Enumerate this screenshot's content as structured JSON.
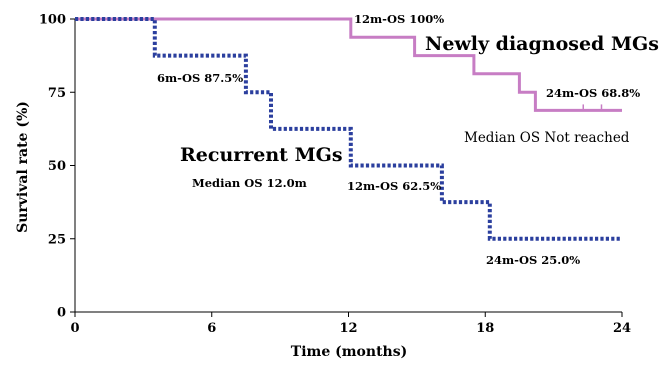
{
  "chart_data": {
    "type": "line",
    "xlabel": "Time (months)",
    "ylabel": "Survival rate (%)",
    "xlim": [
      0,
      24
    ],
    "ylim": [
      0,
      100
    ],
    "xticks": [
      0,
      6,
      12,
      18,
      24
    ],
    "yticks": [
      0,
      25,
      50,
      75,
      100
    ],
    "grid": false,
    "series": [
      {
        "name": "Newly diagnosed MGs",
        "color": "#c77dc4",
        "style": "solid",
        "x": [
          0,
          12.1,
          12.1,
          14.9,
          14.9,
          17.5,
          17.5,
          19.5,
          19.5,
          20.2,
          20.2,
          24
        ],
        "y": [
          100,
          100,
          93.8,
          93.8,
          87.5,
          87.5,
          81.3,
          81.3,
          75,
          75,
          68.8,
          68.8
        ],
        "censored": [
          [
            22.3,
            68.8
          ],
          [
            23.1,
            68.8
          ]
        ]
      },
      {
        "name": "Recurrent MGs",
        "color": "#2b3f9e",
        "style": "dotted",
        "x": [
          0,
          3.5,
          3.5,
          7.5,
          7.5,
          8.6,
          8.6,
          12.1,
          12.1,
          16.1,
          16.1,
          18.2,
          18.2,
          24
        ],
        "y": [
          100,
          100,
          87.5,
          87.5,
          75,
          75,
          62.5,
          62.5,
          50,
          50,
          37.5,
          37.5,
          25,
          25
        ],
        "censored": []
      }
    ],
    "annotations": {
      "nd_12m": "12m-OS 100%",
      "nd_name": "Newly diagnosed MGs",
      "nd_24m": "24m-OS 68.8%",
      "nd_median": "Median OS Not reached",
      "rec_6m": "6m-OS 87.5%",
      "rec_name": "Recurrent MGs",
      "rec_median": "Median OS 12.0m",
      "rec_12m": "12m-OS 62.5%",
      "rec_24m": "24m-OS 25.0%"
    }
  }
}
